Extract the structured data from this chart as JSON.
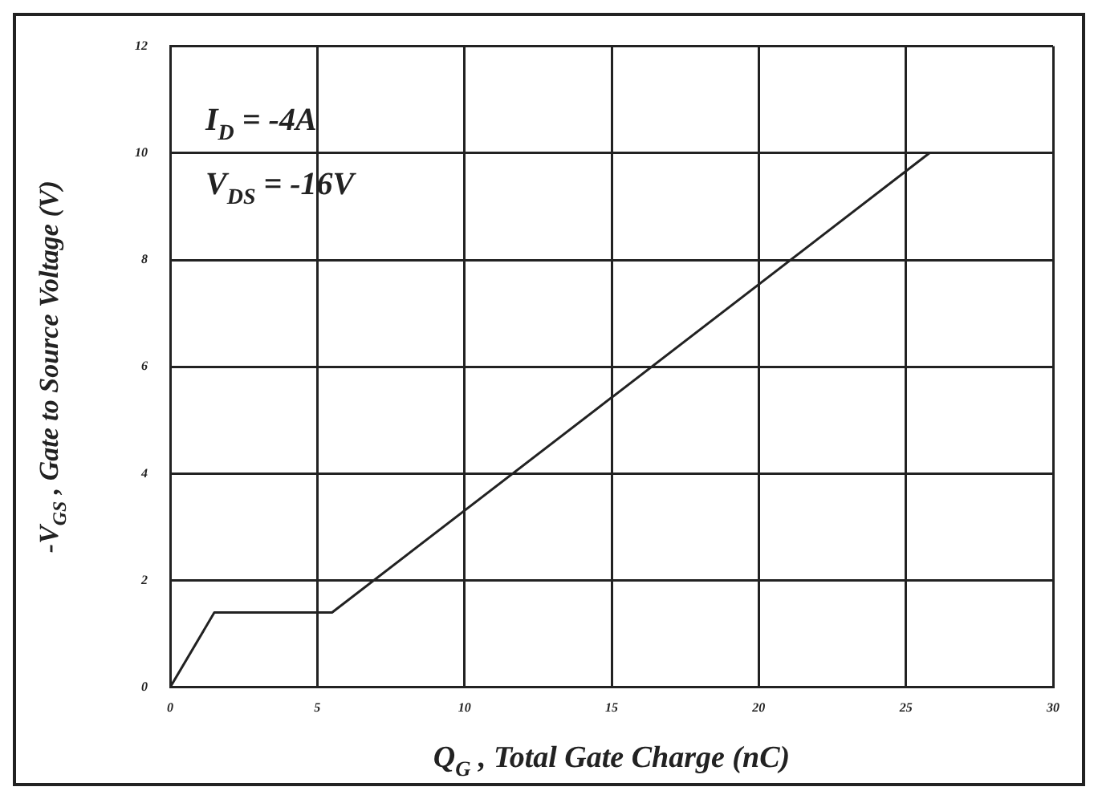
{
  "chart_data": {
    "type": "line",
    "xlabel": "Q$_{G}$ , Total Gate Charge (nC)",
    "ylabel": "-V$_{GS}$ , Gate to Source Voltage (V)",
    "annotations": [
      "I$_{D}$ = -4A",
      "V$_{DS}$ = -16V"
    ],
    "series": [
      {
        "color": "#222222",
        "x": [
          0,
          1.5,
          5.5,
          25.8
        ],
        "values": [
          0,
          1.4,
          1.4,
          10
        ]
      }
    ],
    "xlim": [
      0,
      30
    ],
    "xticks": [
      0,
      5,
      10,
      15,
      20,
      25,
      30
    ],
    "ylim": [
      0,
      12
    ],
    "yticks": [
      0,
      2,
      4,
      6,
      8,
      10,
      12
    ],
    "grid": true,
    "marker": "none",
    "line_style": "solid"
  }
}
